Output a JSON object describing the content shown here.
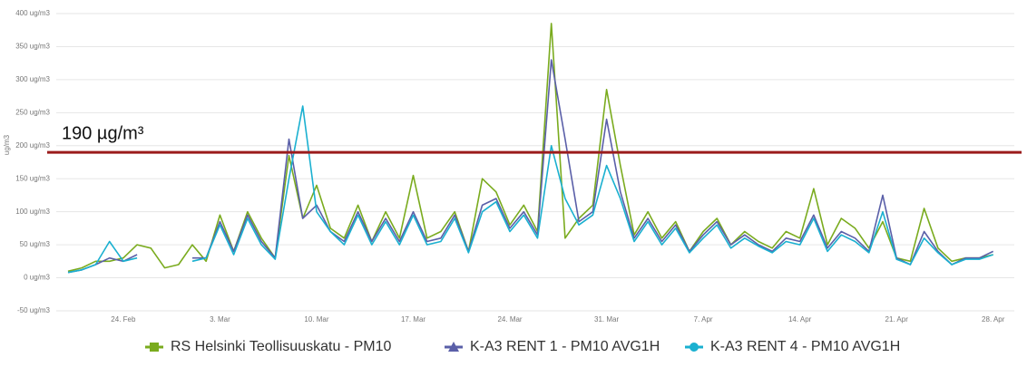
{
  "chart_data": {
    "type": "line",
    "y_label": "ug/m3",
    "categories": [
      null,
      null,
      null,
      null,
      "24. Feb",
      null,
      null,
      null,
      null,
      null,
      null,
      "3. Mar",
      null,
      null,
      null,
      null,
      null,
      null,
      "10. Mar",
      null,
      null,
      null,
      null,
      null,
      null,
      "17. Mar",
      null,
      null,
      null,
      null,
      null,
      null,
      "24. Mar",
      null,
      null,
      null,
      null,
      null,
      null,
      "31. Mar",
      null,
      null,
      null,
      null,
      null,
      null,
      "7. Apr",
      null,
      null,
      null,
      null,
      null,
      null,
      "14. Apr",
      null,
      null,
      null,
      null,
      null,
      null,
      "21. Apr",
      null,
      null,
      null,
      null,
      null,
      null,
      "28. Apr"
    ],
    "series": [
      {
        "name": "RS Helsinki Teollisuuskatu - PM10",
        "color": "#7aab1e",
        "marker": "square",
        "values": [
          10,
          15,
          25,
          25,
          30,
          50,
          45,
          15,
          20,
          50,
          25,
          95,
          40,
          100,
          60,
          30,
          185,
          90,
          140,
          75,
          60,
          110,
          55,
          100,
          60,
          155,
          60,
          70,
          100,
          40,
          150,
          130,
          80,
          110,
          70,
          385,
          60,
          90,
          110,
          285,
          170,
          65,
          100,
          60,
          85,
          40,
          70,
          90,
          50,
          70,
          55,
          45,
          70,
          60,
          135,
          50,
          90,
          75,
          45,
          85,
          30,
          25,
          105,
          45,
          25,
          30,
          30,
          35
        ]
      },
      {
        "name": "K-A3 RENT 1 - PM10 AVG1H",
        "color": "#5a5fa8",
        "marker": "triangle",
        "values": [
          8,
          12,
          20,
          30,
          25,
          35,
          null,
          null,
          null,
          30,
          30,
          85,
          40,
          95,
          55,
          30,
          210,
          90,
          110,
          70,
          55,
          100,
          55,
          90,
          55,
          100,
          55,
          60,
          95,
          40,
          110,
          120,
          75,
          100,
          65,
          330,
          210,
          85,
          100,
          240,
          130,
          60,
          90,
          55,
          80,
          40,
          65,
          85,
          50,
          65,
          50,
          40,
          60,
          55,
          95,
          45,
          70,
          60,
          40,
          125,
          30,
          20,
          70,
          40,
          20,
          30,
          30,
          40
        ]
      },
      {
        "name": "K-A3 RENT 4 - PM10 AVG1H",
        "color": "#1ab0d0",
        "marker": "circle",
        "values": [
          8,
          12,
          20,
          55,
          25,
          30,
          null,
          null,
          null,
          25,
          30,
          80,
          35,
          90,
          50,
          28,
          150,
          260,
          100,
          70,
          50,
          95,
          50,
          85,
          50,
          95,
          50,
          55,
          90,
          38,
          100,
          115,
          70,
          95,
          60,
          200,
          120,
          80,
          95,
          170,
          120,
          55,
          85,
          50,
          75,
          38,
          60,
          80,
          45,
          60,
          48,
          38,
          55,
          50,
          90,
          40,
          65,
          55,
          38,
          100,
          28,
          20,
          60,
          38,
          20,
          28,
          28,
          35
        ]
      }
    ],
    "ylim": [
      -50,
      400
    ],
    "yticks": [
      {
        "value": -50,
        "label": "-50 ug/m3"
      },
      {
        "value": 0,
        "label": "0 ug/m3"
      },
      {
        "value": 50,
        "label": "50 ug/m3"
      },
      {
        "value": 100,
        "label": "100 ug/m3"
      },
      {
        "value": 150,
        "label": "150 ug/m3"
      },
      {
        "value": 200,
        "label": "200 ug/m3"
      },
      {
        "value": 250,
        "label": "250 ug/m3"
      },
      {
        "value": 300,
        "label": "300 ug/m3"
      },
      {
        "value": 350,
        "label": "350 ug/m3"
      },
      {
        "value": 400,
        "label": "400 ug/m3"
      }
    ],
    "grid": true,
    "threshold": {
      "value": 190,
      "label": "190 µg/m³",
      "color": "#9b1c1c"
    }
  }
}
